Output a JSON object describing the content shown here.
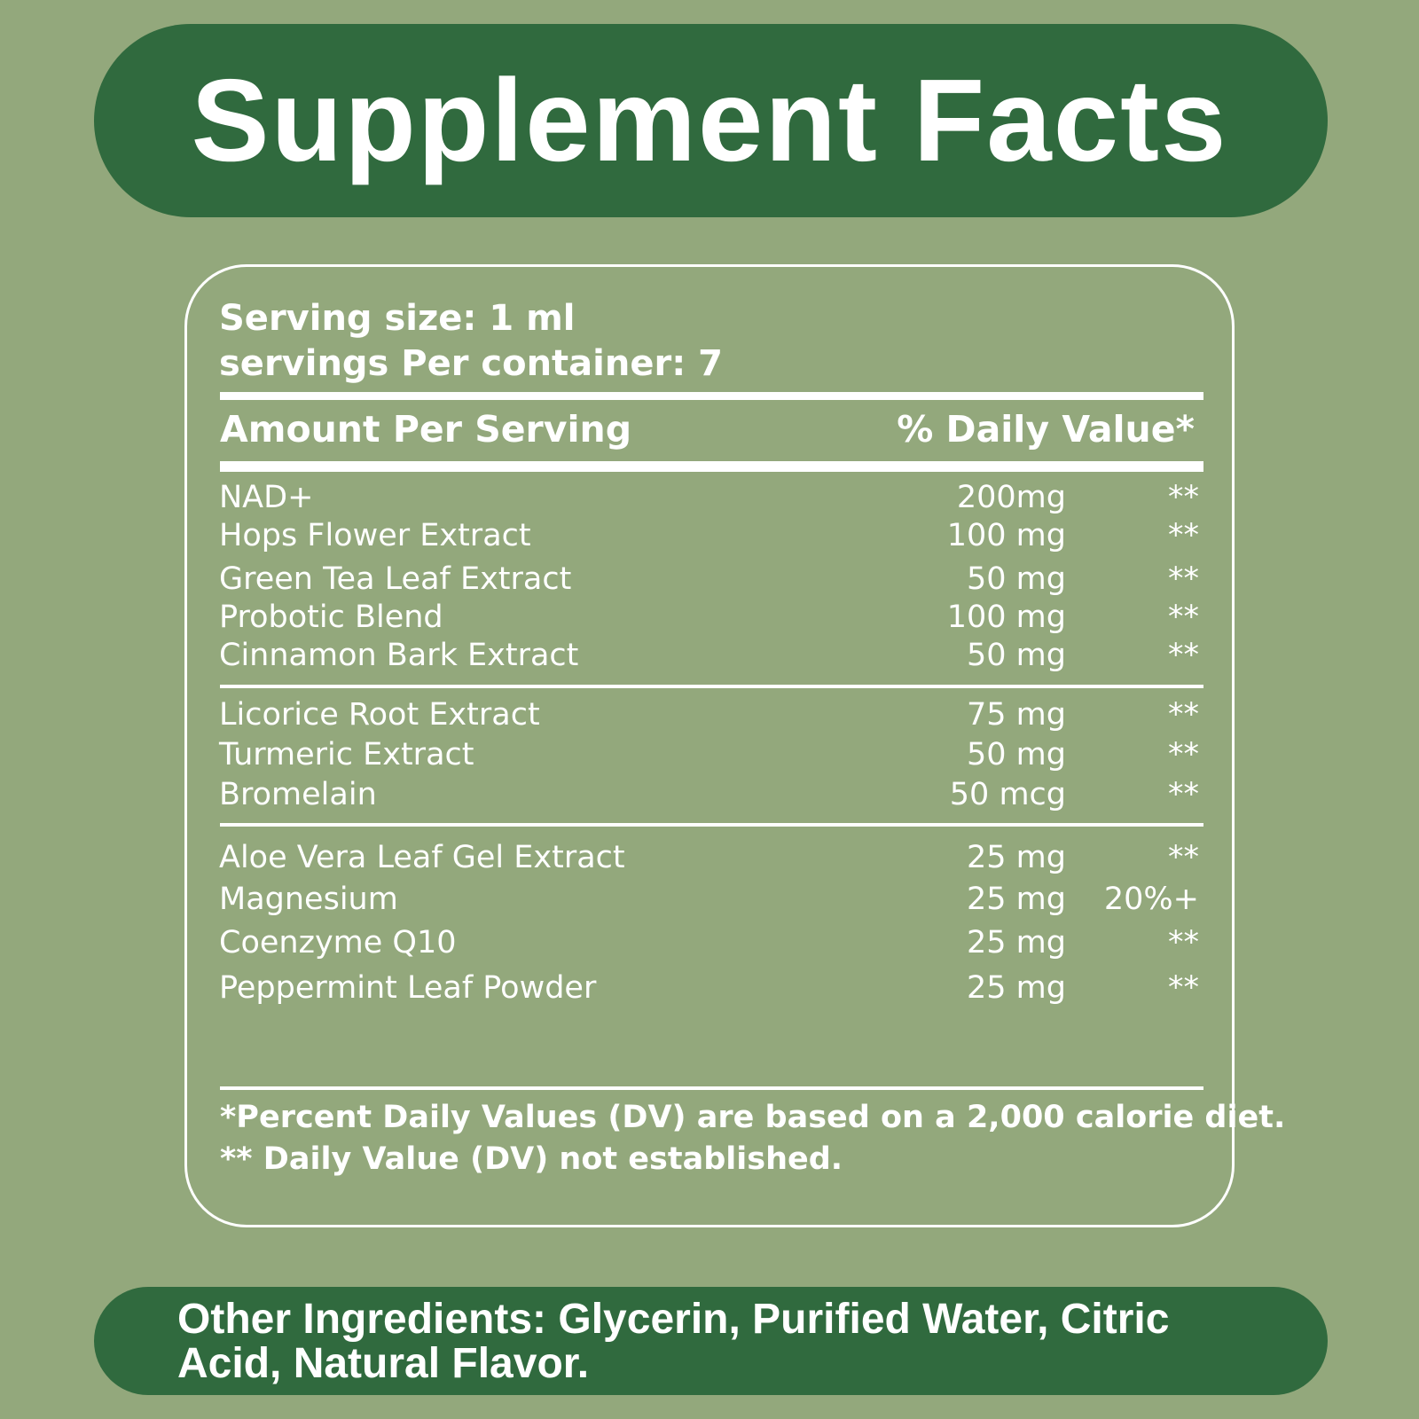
{
  "header": {
    "title": "Supplement Facts"
  },
  "serving": {
    "size": "Serving size: 1 ml",
    "per_container": "servings Per container: 7"
  },
  "table": {
    "header": [
      "Amount Per Serving",
      "% Daily Value*"
    ],
    "groups": [
      [
        [
          "NAD+",
          "200mg",
          "**"
        ],
        [
          "Hops Flower Extract",
          "100 mg",
          "**"
        ],
        [
          "Green Tea Leaf Extract",
          "50 mg",
          "**"
        ],
        [
          "Probotic Blend",
          "100 mg",
          "**"
        ],
        [
          "Cinnamon Bark Extract",
          "50 mg",
          "**"
        ]
      ],
      [
        [
          "Licorice Root Extract",
          "75 mg",
          "**"
        ],
        [
          "Turmeric Extract",
          "50 mg",
          "**"
        ],
        [
          "Bromelain",
          "50 mcg",
          "**"
        ]
      ],
      [
        [
          "Aloe Vera Leaf Gel Extract",
          "25 mg",
          "**"
        ],
        [
          "Magnesium",
          "25 mg",
          "20%+"
        ],
        [
          "Coenzyme Q10",
          "25 mg",
          "**"
        ],
        [
          "Peppermint Leaf Powder",
          "25 mg",
          "**"
        ]
      ]
    ]
  },
  "footnotes": [
    "*Percent Daily Values (DV) are based on a 2,000 calorie diet.",
    "** Daily Value (DV) not established."
  ],
  "other_ingredients": "Other Ingredients: Glycerin, Purified Water, Citric Acid, Natural Flavor."
}
